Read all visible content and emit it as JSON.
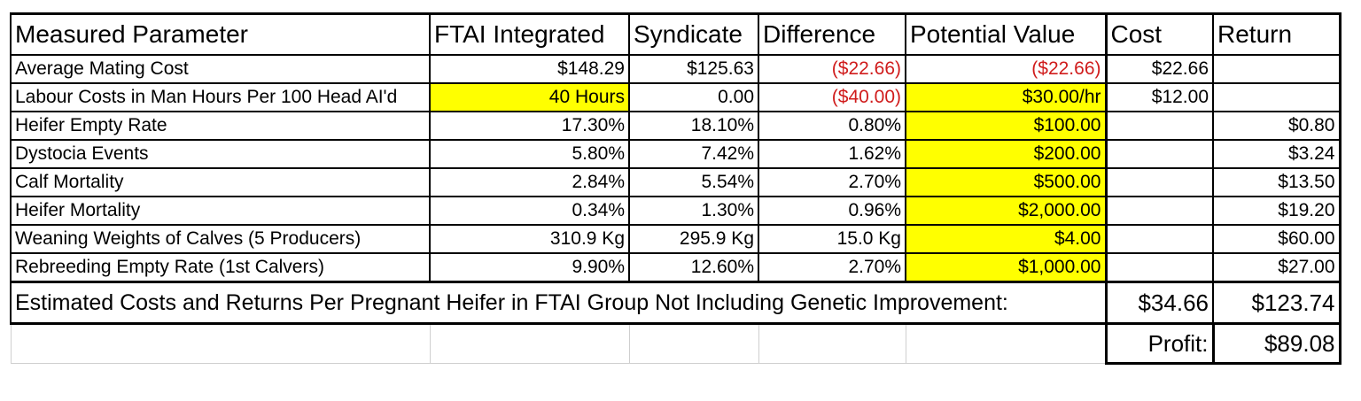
{
  "headers": [
    "Measured Parameter",
    "FTAI Integrated",
    "Syndicate",
    "Difference",
    "Potential Value",
    "Cost",
    "Return"
  ],
  "rows": [
    {
      "param": "Average Mating Cost",
      "ftai": "$148.29",
      "synd": "$125.63",
      "diff": "($22.66)",
      "pv": "($22.66)",
      "cost": "$22.66",
      "ret": ""
    },
    {
      "param": "Labour Costs in Man Hours Per 100 Head AI'd",
      "ftai": "40 Hours",
      "synd": "0.00",
      "diff": "($40.00)",
      "pv": "$30.00/hr",
      "cost": "$12.00",
      "ret": ""
    },
    {
      "param": "Heifer Empty Rate",
      "ftai": "17.30%",
      "synd": "18.10%",
      "diff": "0.80%",
      "pv": "$100.00",
      "cost": "",
      "ret": "$0.80"
    },
    {
      "param": "Dystocia Events",
      "ftai": "5.80%",
      "synd": "7.42%",
      "diff": "1.62%",
      "pv": "$200.00",
      "cost": "",
      "ret": "$3.24"
    },
    {
      "param": "Calf Mortality",
      "ftai": "2.84%",
      "synd": "5.54%",
      "diff": "2.70%",
      "pv": "$500.00",
      "cost": "",
      "ret": "$13.50"
    },
    {
      "param": "Heifer Mortality",
      "ftai": "0.34%",
      "synd": "1.30%",
      "diff": "0.96%",
      "pv": "$2,000.00",
      "cost": "",
      "ret": "$19.20"
    },
    {
      "param": "Weaning Weights of Calves (5 Producers)",
      "ftai": "310.9 Kg",
      "synd": "295.9 Kg",
      "diff": "15.0 Kg",
      "pv": "$4.00",
      "cost": "",
      "ret": "$60.00"
    },
    {
      "param": "Rebreeding Empty Rate (1st Calvers)",
      "ftai": "9.90%",
      "synd": "12.60%",
      "diff": "2.70%",
      "pv": "$1,000.00",
      "cost": "",
      "ret": "$27.00"
    }
  ],
  "total": {
    "label": "Estimated Costs and Returns Per Pregnant Heifer in FTAI Group Not Including Genetic Improvement:",
    "cost": "$34.66",
    "ret": "$123.74"
  },
  "profit": {
    "label": "Profit:",
    "value": "$89.08"
  },
  "colors": {
    "highlight": "#ffff00",
    "negative": "#d01c1c"
  }
}
